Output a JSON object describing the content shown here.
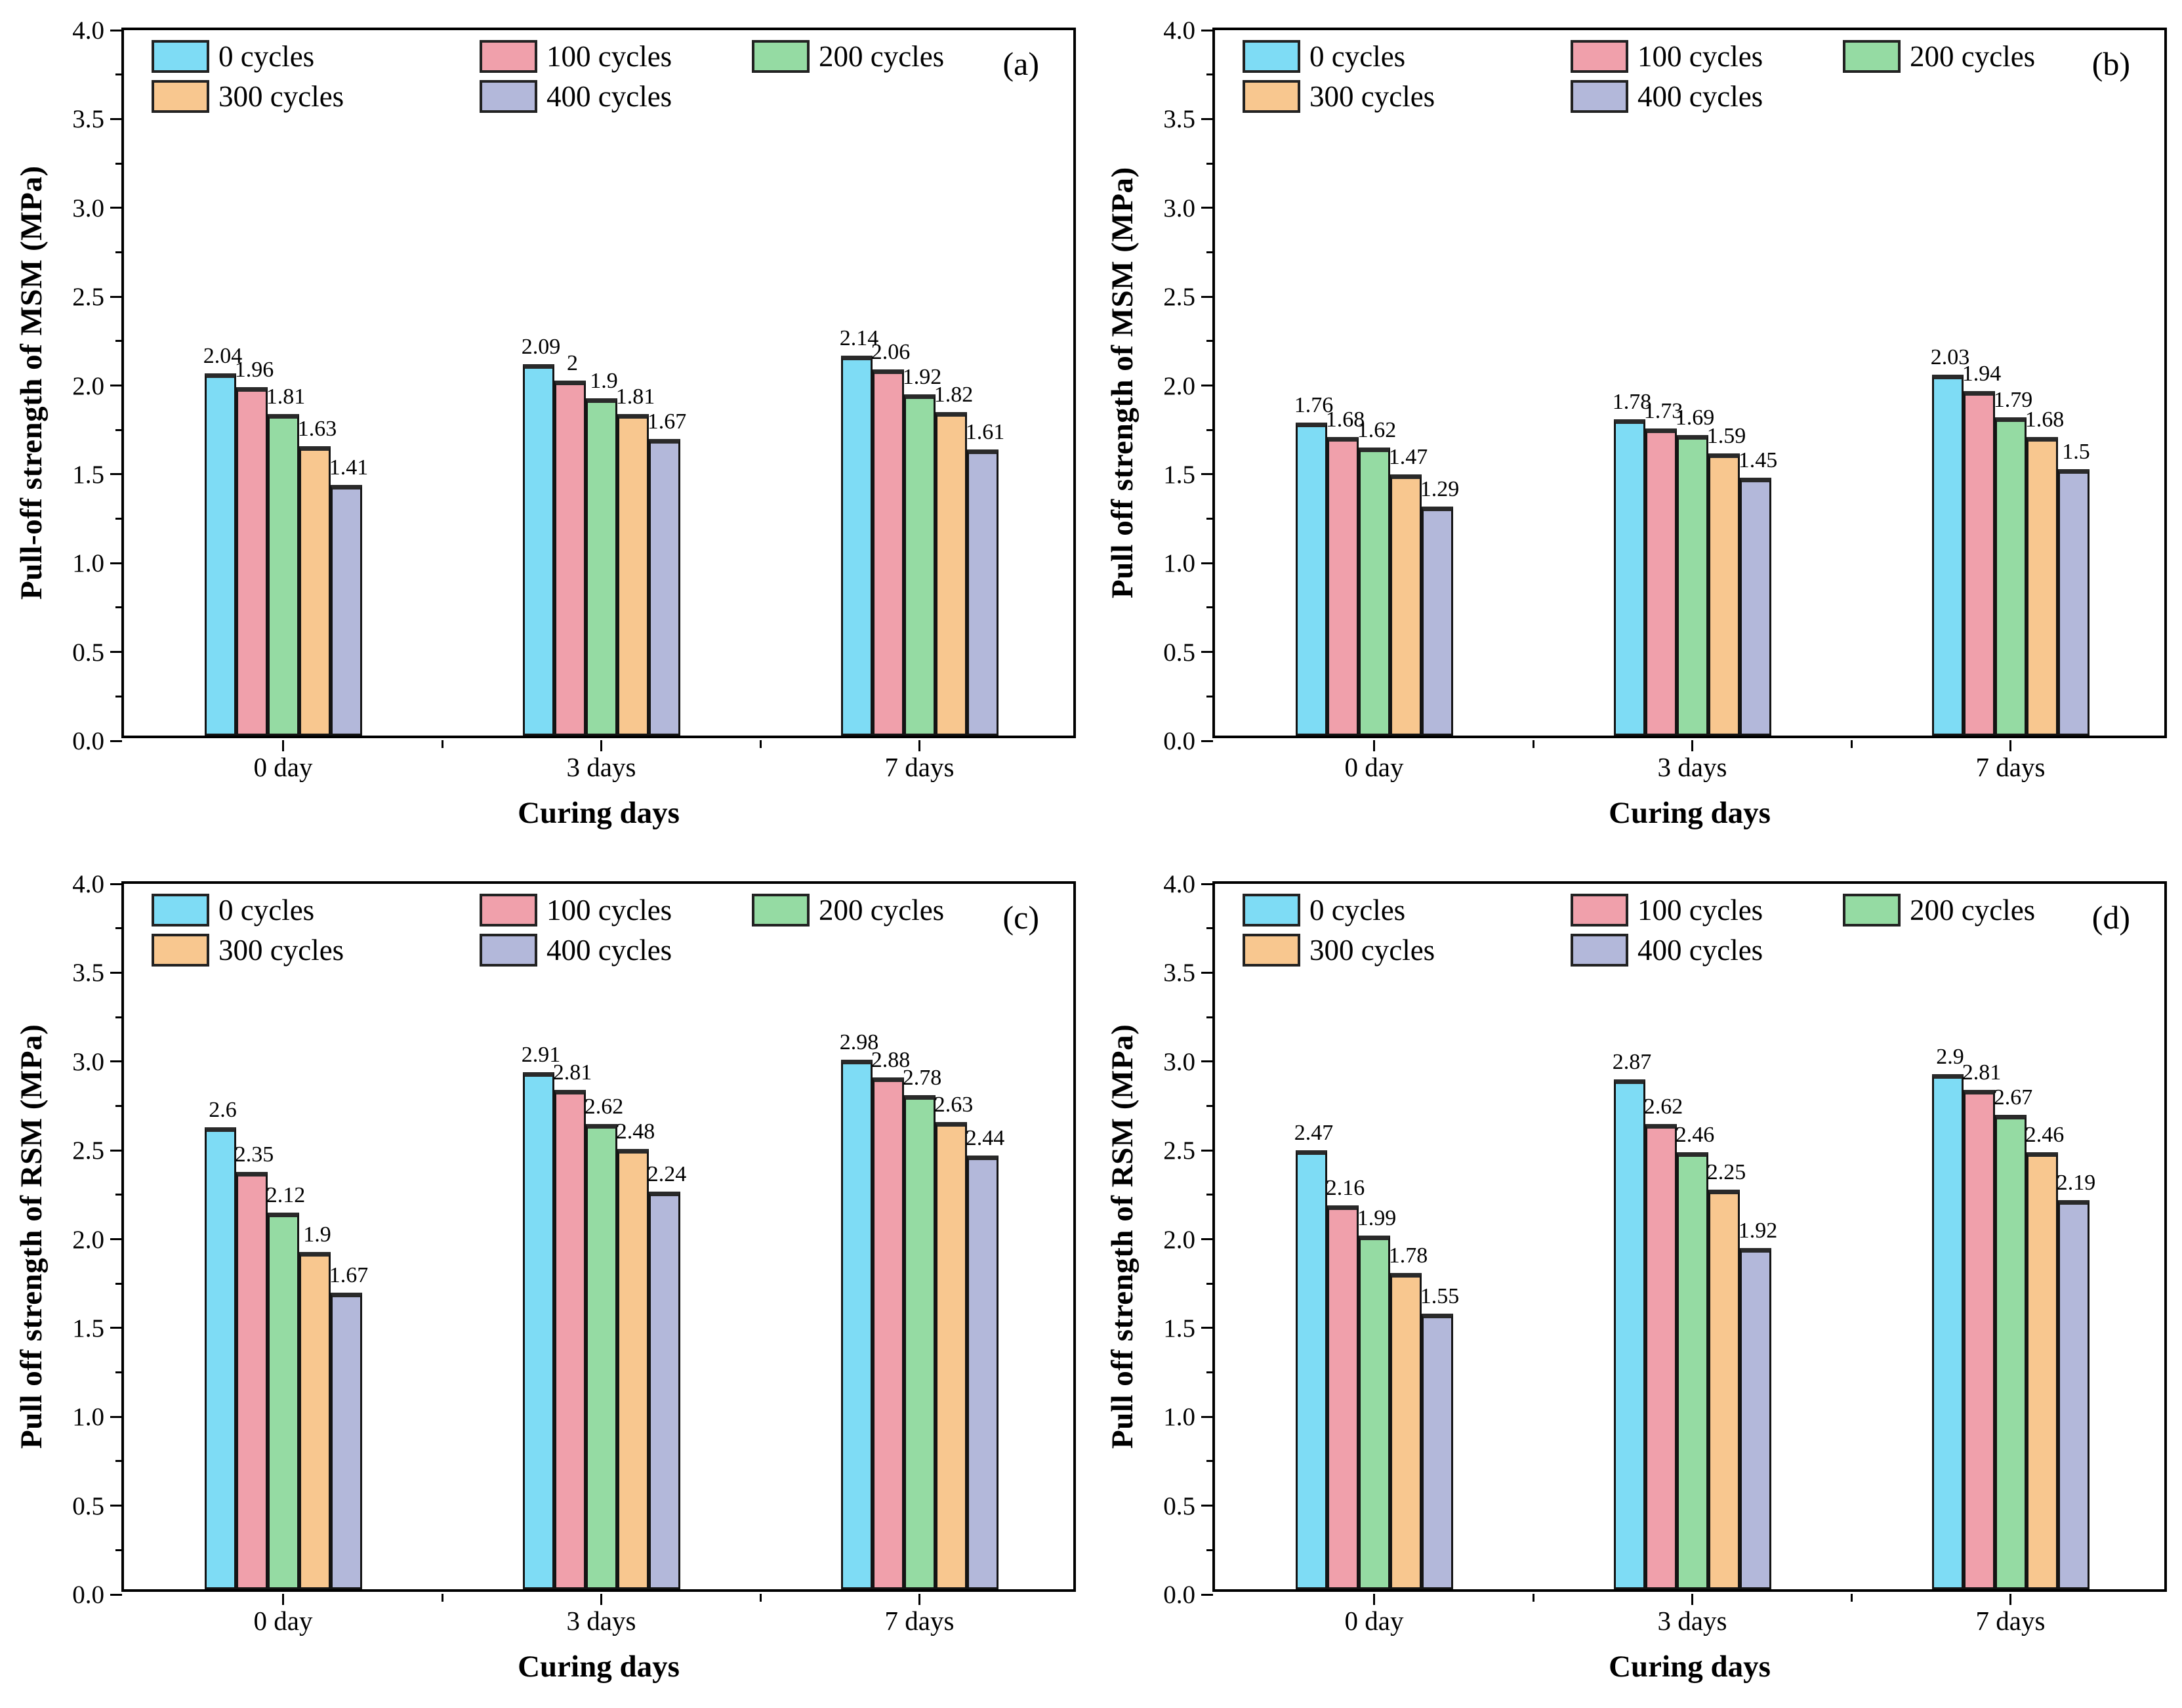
{
  "figure": {
    "xlabel": "Curing days",
    "categories": [
      "0 day",
      "3 days",
      "7 days"
    ],
    "legend": [
      {
        "label": "0 cycles",
        "color": "#7edcf5"
      },
      {
        "label": "100 cycles",
        "color": "#f0a0ab"
      },
      {
        "label": "200 cycles",
        "color": "#95dba3"
      },
      {
        "label": "300 cycles",
        "color": "#f8c78f"
      },
      {
        "label": "400 cycles",
        "color": "#b3b8da"
      }
    ],
    "axis_color": "#000000",
    "bar_border_color": "#141414",
    "background_color": "#ffffff"
  },
  "chart_data": [
    {
      "type": "bar",
      "panel_label": "(a)",
      "ylabel": "Pull-off strength of MSM (MPa)",
      "xlabel": "Curing days",
      "categories": [
        "0 day",
        "3 days",
        "7 days"
      ],
      "ylim": [
        0.0,
        4.0
      ],
      "ytick_step": 0.5,
      "legend_position": "top-left",
      "grid": false,
      "series": [
        {
          "name": "0 cycles",
          "color": "#7edcf5",
          "values": [
            2.04,
            2.09,
            2.14
          ]
        },
        {
          "name": "100 cycles",
          "color": "#f0a0ab",
          "values": [
            1.96,
            2.0,
            2.06
          ]
        },
        {
          "name": "200 cycles",
          "color": "#95dba3",
          "values": [
            1.81,
            1.9,
            1.92
          ]
        },
        {
          "name": "300 cycles",
          "color": "#f8c78f",
          "values": [
            1.63,
            1.81,
            1.82
          ]
        },
        {
          "name": "400 cycles",
          "color": "#b3b8da",
          "values": [
            1.41,
            1.67,
            1.61
          ]
        }
      ]
    },
    {
      "type": "bar",
      "panel_label": "(b)",
      "ylabel": "Pull off strength of MSM (MPa)",
      "xlabel": "Curing days",
      "categories": [
        "0 day",
        "3 days",
        "7 days"
      ],
      "ylim": [
        0.0,
        4.0
      ],
      "ytick_step": 0.5,
      "legend_position": "top-left",
      "grid": false,
      "series": [
        {
          "name": "0 cycles",
          "color": "#7edcf5",
          "values": [
            1.76,
            1.78,
            2.03
          ]
        },
        {
          "name": "100 cycles",
          "color": "#f0a0ab",
          "values": [
            1.68,
            1.73,
            1.94
          ]
        },
        {
          "name": "200 cycles",
          "color": "#95dba3",
          "values": [
            1.62,
            1.69,
            1.79
          ]
        },
        {
          "name": "300 cycles",
          "color": "#f8c78f",
          "values": [
            1.47,
            1.59,
            1.68
          ]
        },
        {
          "name": "400 cycles",
          "color": "#b3b8da",
          "values": [
            1.29,
            1.45,
            1.5
          ]
        }
      ]
    },
    {
      "type": "bar",
      "panel_label": "(c)",
      "ylabel": "Pull off strength of RSM (MPa)",
      "xlabel": "Curing days",
      "categories": [
        "0 day",
        "3 days",
        "7 days"
      ],
      "ylim": [
        0.0,
        4.0
      ],
      "ytick_step": 0.5,
      "legend_position": "top-left",
      "grid": false,
      "series": [
        {
          "name": "0 cycles",
          "color": "#7edcf5",
          "values": [
            2.6,
            2.91,
            2.98
          ]
        },
        {
          "name": "100 cycles",
          "color": "#f0a0ab",
          "values": [
            2.35,
            2.81,
            2.88
          ]
        },
        {
          "name": "200 cycles",
          "color": "#95dba3",
          "values": [
            2.12,
            2.62,
            2.78
          ]
        },
        {
          "name": "300 cycles",
          "color": "#f8c78f",
          "values": [
            1.9,
            2.48,
            2.63
          ]
        },
        {
          "name": "400 cycles",
          "color": "#b3b8da",
          "values": [
            1.67,
            2.24,
            2.44
          ]
        }
      ]
    },
    {
      "type": "bar",
      "panel_label": "(d)",
      "ylabel": "Pull off strength of RSM (MPa)",
      "xlabel": "Curing days",
      "categories": [
        "0 day",
        "3 days",
        "7 days"
      ],
      "ylim": [
        0.0,
        4.0
      ],
      "ytick_step": 0.5,
      "legend_position": "top-left",
      "grid": false,
      "series": [
        {
          "name": "0 cycles",
          "color": "#7edcf5",
          "values": [
            2.47,
            2.87,
            2.9
          ]
        },
        {
          "name": "100 cycles",
          "color": "#f0a0ab",
          "values": [
            2.16,
            2.62,
            2.81
          ]
        },
        {
          "name": "200 cycles",
          "color": "#95dba3",
          "values": [
            1.99,
            2.46,
            2.67
          ]
        },
        {
          "name": "300 cycles",
          "color": "#f8c78f",
          "values": [
            1.78,
            2.25,
            2.46
          ]
        },
        {
          "name": "400 cycles",
          "color": "#b3b8da",
          "values": [
            1.55,
            1.92,
            2.19
          ]
        }
      ]
    }
  ]
}
